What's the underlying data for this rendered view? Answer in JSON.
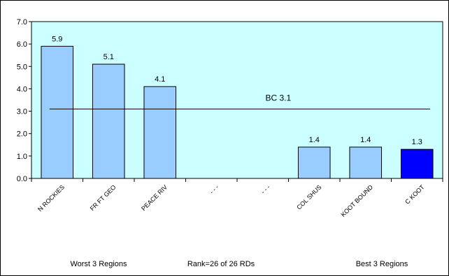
{
  "chart_data": {
    "type": "bar",
    "categories": [
      "N ROCKIES",
      "FR FT GEO",
      "PEACE RIV",
      "- - -",
      "- - -",
      "COL SHUS",
      "KOOT BOUND",
      "C KOOT"
    ],
    "values": [
      5.9,
      5.1,
      4.1,
      null,
      null,
      1.4,
      1.4,
      1.3
    ],
    "data_labels": [
      "5.9",
      "5.1",
      "4.1",
      "",
      "",
      "1.4",
      "1.4",
      "1.3"
    ],
    "highlight_index": 7,
    "ylim": [
      0,
      7
    ],
    "yticks": [
      "0.0",
      "1.0",
      "2.0",
      "3.0",
      "4.0",
      "5.0",
      "6.0",
      "7.0"
    ],
    "reference_line": {
      "label": "BC 3.1",
      "value": 3.1
    },
    "footer": {
      "left": "Worst 3 Regions",
      "center": "Rank=26 of 26 RDs",
      "right": "Best 3 Regions"
    },
    "grid": false,
    "colors": {
      "plot_background": "#ccffff",
      "bar": "#99ccff",
      "bar_highlight": "#0000ff",
      "edge": "#000000"
    }
  }
}
